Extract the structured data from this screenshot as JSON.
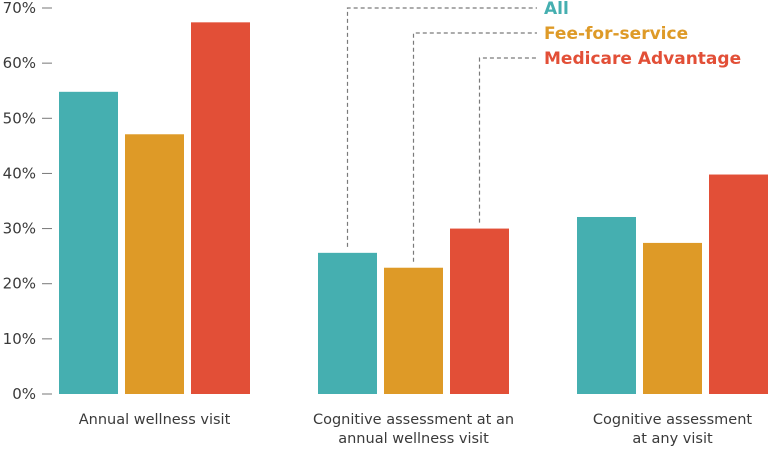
{
  "chart_data": {
    "type": "bar",
    "categories": [
      [
        "Annual wellness visit"
      ],
      [
        "Cognitive assessment at an",
        "annual wellness visit"
      ],
      [
        "Cognitive assessment",
        "at any visit"
      ]
    ],
    "series": [
      {
        "name": "All",
        "color": "#45afb0",
        "values": [
          54.8,
          25.6,
          32.1
        ]
      },
      {
        "name": "Fee-for-service",
        "color": "#de9a27",
        "values": [
          47.1,
          22.9,
          27.4
        ]
      },
      {
        "name": "Medicare Advantage",
        "color": "#e24f37",
        "values": [
          67.4,
          30.0,
          39.8
        ]
      }
    ],
    "y_ticks": [
      "0%",
      "10%",
      "20%",
      "30%",
      "40%",
      "50%",
      "60%",
      "70%"
    ],
    "ylim": [
      0,
      70
    ],
    "legend": "top-center, callout lines to middle bars",
    "grid": false,
    "colors": {
      "axis": "#777777",
      "text": "#3a3a3a",
      "callout": "#7a7a7a"
    }
  }
}
